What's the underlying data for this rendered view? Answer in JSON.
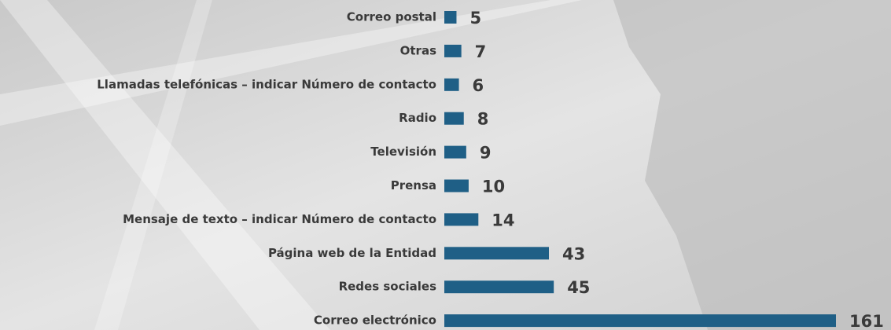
{
  "chart_data": {
    "type": "bar",
    "orientation": "horizontal",
    "color": "#1f5f86",
    "categories": [
      "Correo postal",
      "Otras",
      "Llamadas telefónicas – indicar Número de contacto",
      "Radio",
      "Televisión",
      "Prensa",
      "Mensaje de texto – indicar Número de contacto",
      "Página web de la Entidad",
      "Redes sociales",
      "Correo electrónico"
    ],
    "values": [
      5,
      7,
      6,
      8,
      9,
      10,
      14,
      43,
      45,
      161
    ]
  }
}
